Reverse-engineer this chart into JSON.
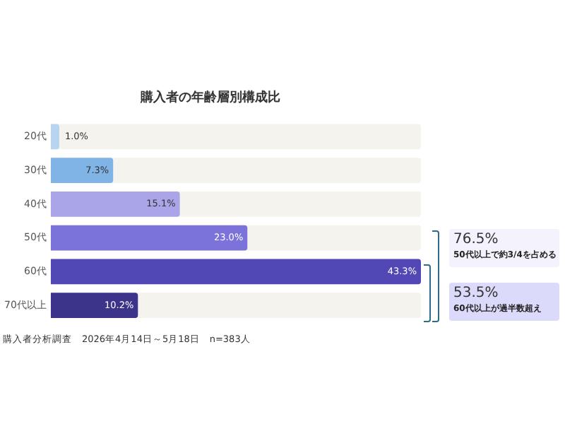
{
  "chart_data": {
    "type": "bar",
    "orientation": "horizontal",
    "title": "購入者の年齢層別構成比",
    "categories": [
      "20代",
      "30代",
      "40代",
      "50代",
      "60代",
      "70代以上"
    ],
    "values": [
      1.0,
      7.3,
      15.1,
      23.0,
      43.3,
      10.2
    ],
    "colors": [
      "#b9d4f0",
      "#80b3e6",
      "#aaa4e8",
      "#7c73da",
      "#5148b6",
      "#3c348a"
    ],
    "value_labels": [
      "1.0%",
      "7.3%",
      "15.1%",
      "23.0%",
      "43.3%",
      "10.2%"
    ],
    "grid": false,
    "legend": false,
    "annotations": [
      "76.5%",
      "50代以上で約3/4を占める",
      "53.5%",
      "60代以上が過半数超え",
      "購入者分析調査　2026年4月14日～5月18日　n=383人"
    ]
  }
}
